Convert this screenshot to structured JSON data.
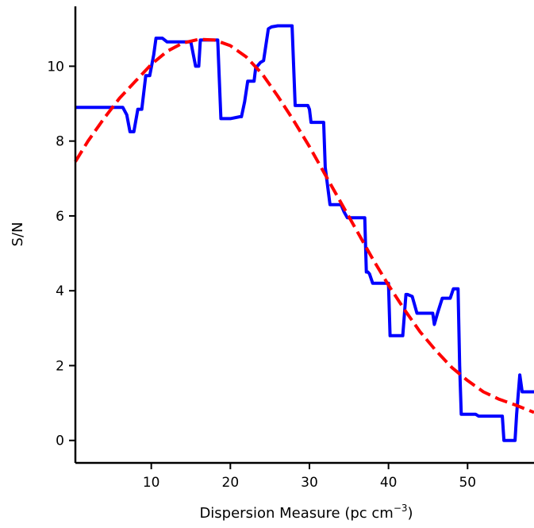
{
  "chart_data": {
    "type": "line",
    "title": "",
    "xlabel": "Dispersion Measure (pc cm",
    "xlabel_sup": "−3",
    "xlabel_close": ")",
    "ylabel": "S/N",
    "xlim": [
      0.4,
      58.4
    ],
    "ylim": [
      -0.6,
      11.6
    ],
    "xticks": [
      10,
      20,
      30,
      40,
      50
    ],
    "yticks": [
      0,
      2,
      4,
      6,
      8,
      10
    ],
    "grid": false,
    "legend": "none",
    "series": [
      {
        "style": "solid",
        "color": "#0000ff",
        "x": [
          0.4,
          6.4,
          6.9,
          7.3,
          7.8,
          8.3,
          8.8,
          9.3,
          9.8,
          10.3,
          10.6,
          11.4,
          12.0,
          12.4,
          13.0,
          15.0,
          15.6,
          16.0,
          16.2,
          16.8,
          17.2,
          18.4,
          18.8,
          20.0,
          21.2,
          21.4,
          21.8,
          22.2,
          23.0,
          23.2,
          23.8,
          24.2,
          24.8,
          25.2,
          26.0,
          27.8,
          28.2,
          29.8,
          30.0,
          30.2,
          31.8,
          32.0,
          32.6,
          34.0,
          34.4,
          34.8,
          35.0,
          36.4,
          37.0,
          37.2,
          37.4,
          37.6,
          38.0,
          40.0,
          40.2,
          41.8,
          42.2,
          42.4,
          43.0,
          43.6,
          44.0,
          45.6,
          45.8,
          46.2,
          46.8,
          47.8,
          48.2,
          48.8,
          49.0,
          49.2,
          49.4,
          51.0,
          51.4,
          54.0,
          54.4,
          54.6,
          56.0,
          56.2,
          56.6,
          56.9,
          58.4
        ],
        "y": [
          8.9,
          8.9,
          8.7,
          8.25,
          8.25,
          8.85,
          8.85,
          9.75,
          9.75,
          10.3,
          10.75,
          10.75,
          10.65,
          10.65,
          10.65,
          10.65,
          10.0,
          10.0,
          10.7,
          10.7,
          10.7,
          10.7,
          8.6,
          8.6,
          8.65,
          8.65,
          9.05,
          9.6,
          9.6,
          9.95,
          10.1,
          10.15,
          11.0,
          11.05,
          11.08,
          11.08,
          8.95,
          8.95,
          8.85,
          8.5,
          8.5,
          7.3,
          6.3,
          6.3,
          6.1,
          5.95,
          5.95,
          5.95,
          5.95,
          4.5,
          4.5,
          4.45,
          4.2,
          4.2,
          2.8,
          2.8,
          3.9,
          3.9,
          3.85,
          3.4,
          3.4,
          3.4,
          3.1,
          3.4,
          3.8,
          3.8,
          4.05,
          4.05,
          2.0,
          0.7,
          0.7,
          0.7,
          0.65,
          0.65,
          0.65,
          0.0,
          0.0,
          0.7,
          1.75,
          1.3,
          1.3
        ]
      },
      {
        "style": "dashed",
        "color": "#ff0000",
        "x": [
          0.4,
          2,
          4,
          6,
          8,
          10,
          12,
          14,
          16,
          18,
          20,
          22,
          24,
          26,
          28,
          30,
          32,
          34,
          36,
          38,
          40,
          42,
          44,
          46,
          48,
          50,
          52,
          54,
          56,
          58.4
        ],
        "y": [
          7.45,
          8.0,
          8.6,
          9.15,
          9.6,
          10.05,
          10.4,
          10.62,
          10.72,
          10.7,
          10.55,
          10.25,
          9.8,
          9.2,
          8.55,
          7.85,
          7.1,
          6.35,
          5.6,
          4.85,
          4.15,
          3.5,
          2.9,
          2.4,
          1.95,
          1.6,
          1.3,
          1.1,
          0.95,
          0.75
        ]
      }
    ]
  }
}
